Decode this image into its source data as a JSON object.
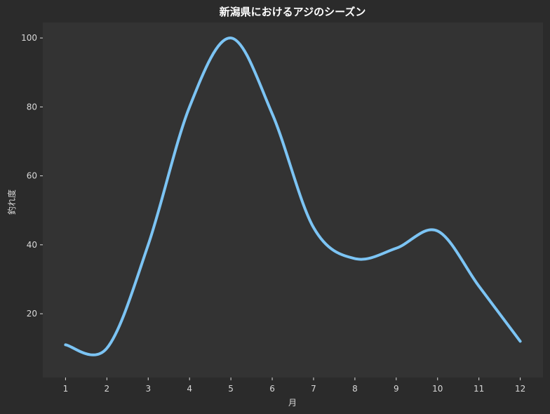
{
  "chart_data": {
    "type": "line",
    "title": "新潟県におけるアジのシーズン",
    "xlabel": "月",
    "ylabel": "釣れ度",
    "x": [
      1,
      2,
      3,
      4,
      5,
      6,
      7,
      8,
      9,
      10,
      11,
      12
    ],
    "xticks": [
      "1",
      "2",
      "3",
      "4",
      "5",
      "6",
      "7",
      "8",
      "9",
      "10",
      "11",
      "12"
    ],
    "yticks": [
      "20",
      "40",
      "60",
      "80",
      "100"
    ],
    "series": [
      {
        "values": [
          11,
          10,
          40,
          80,
          100,
          78,
          45,
          36,
          39,
          44,
          28,
          12
        ]
      }
    ],
    "xlim": [
      0.45,
      12.55
    ],
    "ylim": [
      1.5,
      104.5
    ],
    "grid": false,
    "smooth": true,
    "colors": {
      "background": "#2b2b2b",
      "plot_area": "#333333",
      "line": "#7cc4f4",
      "text": "#d8d8d8",
      "title": "#ffffff"
    }
  }
}
